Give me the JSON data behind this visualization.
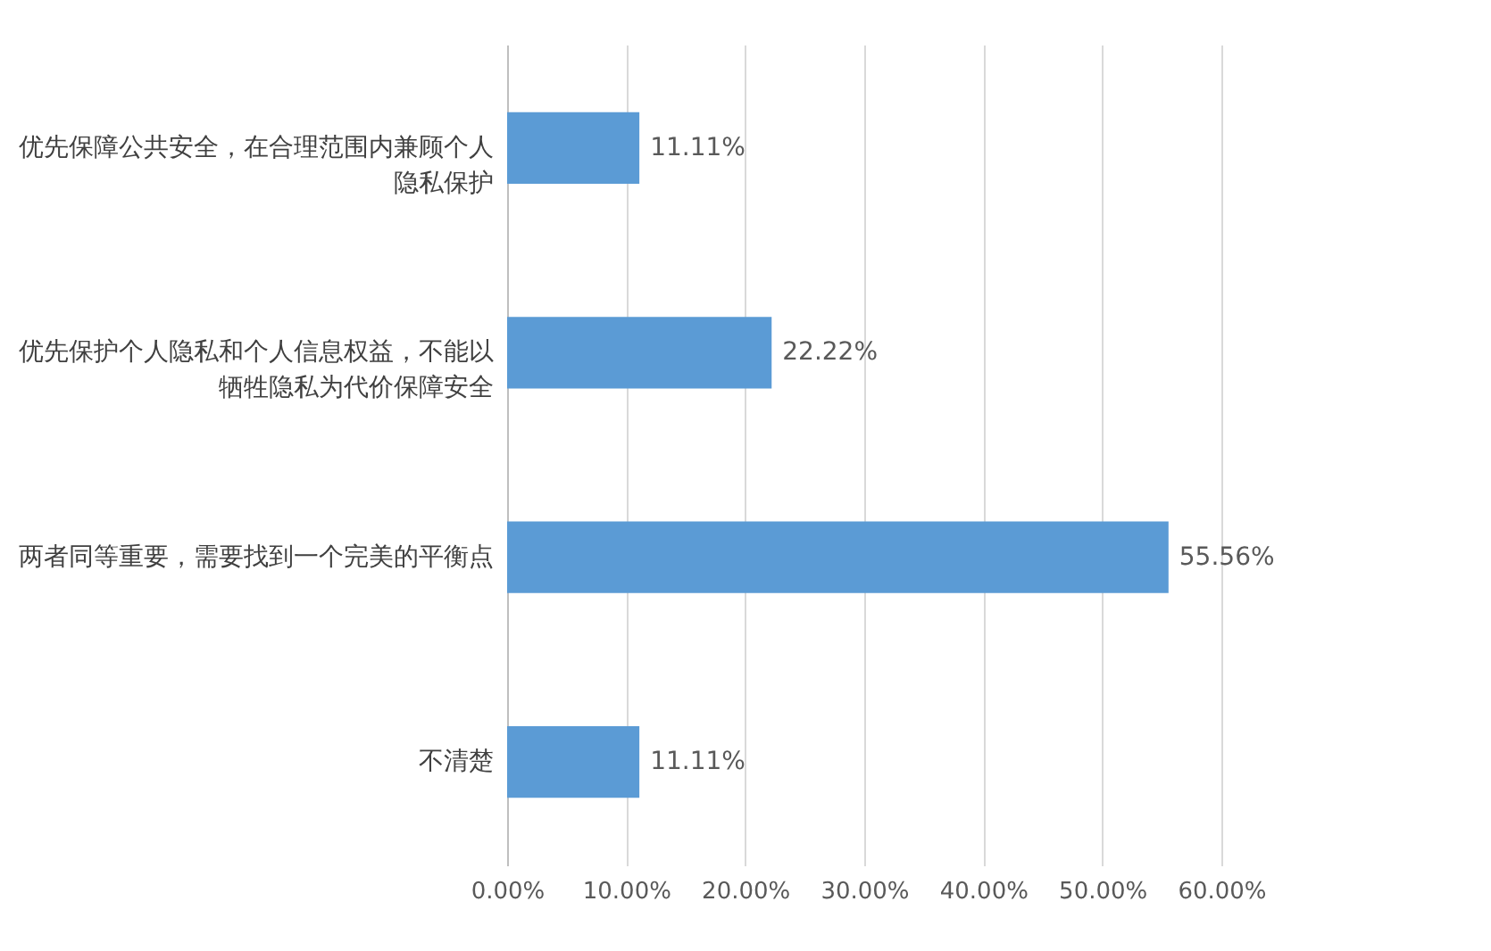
{
  "chart_data": {
    "type": "bar",
    "orientation": "horizontal",
    "categories": [
      "优先保障公共安全，在合理范围内兼顾个人隐私保护",
      "优先保护个人隐私和个人信息权益，不能以牺牲隐私为代价保障安全",
      "两者同等重要，需要找到一个完美的平衡点",
      "不清楚"
    ],
    "values": [
      11.11,
      22.22,
      55.56,
      11.11
    ],
    "value_labels": [
      "11.11%",
      "22.22%",
      "55.56%",
      "11.11%"
    ],
    "color": "#5b9bd5",
    "xlim": [
      0,
      60
    ],
    "xticks": [
      {
        "value": 0,
        "label": "0.00%"
      },
      {
        "value": 10,
        "label": "10.00%"
      },
      {
        "value": 20,
        "label": "20.00%"
      },
      {
        "value": 30,
        "label": "30.00%"
      },
      {
        "value": 40,
        "label": "40.00%"
      },
      {
        "value": 50,
        "label": "50.00%"
      },
      {
        "value": 60,
        "label": "60.00%"
      }
    ],
    "grid": "x"
  }
}
